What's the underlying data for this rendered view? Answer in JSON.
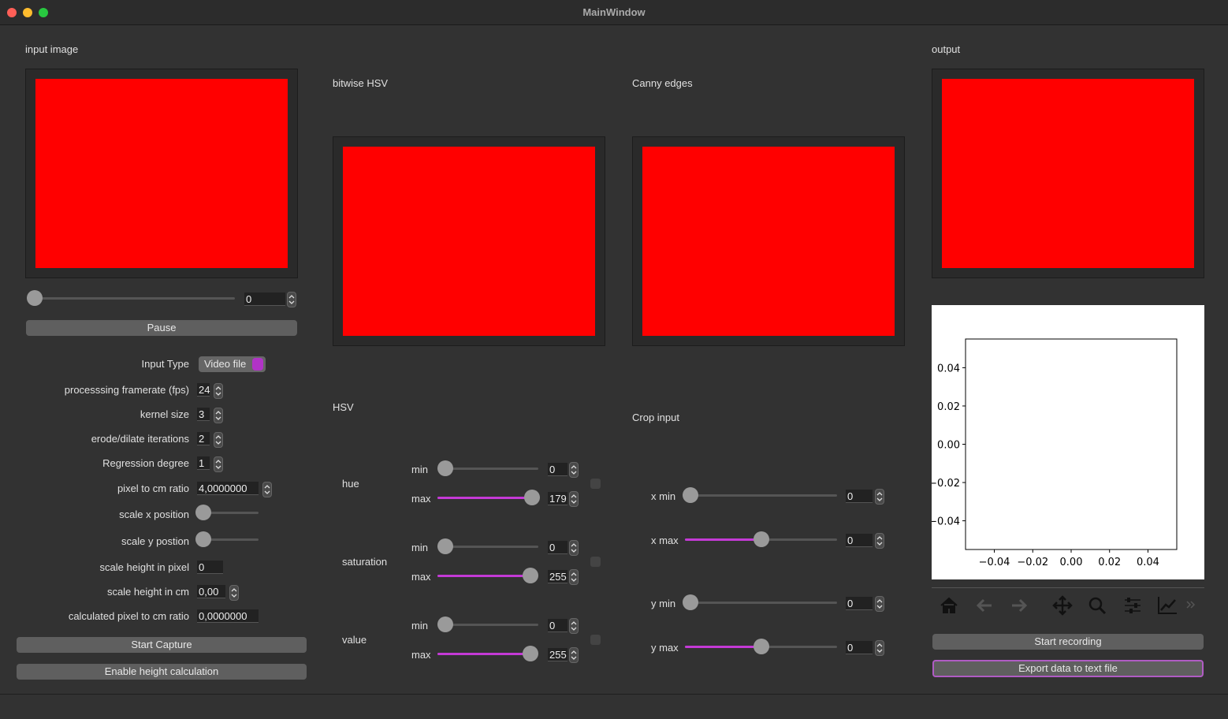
{
  "window": {
    "title": "MainWindow"
  },
  "input": {
    "label": "input image",
    "frame": 0,
    "pause": "Pause"
  },
  "settings": [
    {
      "label": "Input Type",
      "value": "Video file"
    },
    {
      "label": "processsing framerate (fps)",
      "value": 24
    },
    {
      "label": "kernel size",
      "value": 3
    },
    {
      "label": "erode/dilate iterations",
      "value": 2
    },
    {
      "label": "Regression degree",
      "value": 1
    },
    {
      "label": "pixel to cm ratio",
      "value": "4,0000000"
    },
    {
      "label": "scale x position"
    },
    {
      "label": "scale y postion"
    },
    {
      "label": "scale height in pixel",
      "value": 0
    },
    {
      "label": "scale height in cm",
      "value": "0,00"
    },
    {
      "label": "calculated pixel to cm ratio",
      "value": "0,0000000"
    }
  ],
  "buttons": [
    "Start Capture",
    "Enable height calculation"
  ],
  "panels": {
    "bitwise": "bitwise HSV",
    "canny": "Canny edges",
    "output": "output"
  },
  "hsv": {
    "title": "HSV",
    "min_label": "min",
    "max_label": "max",
    "rows": [
      {
        "label": "hue",
        "min": 0,
        "max": 179
      },
      {
        "label": "saturation",
        "min": 0,
        "max": 255
      },
      {
        "label": "value",
        "min": 0,
        "max": 255
      }
    ]
  },
  "crop": {
    "title": "Crop input",
    "rows": [
      {
        "label": "x min",
        "value": 0
      },
      {
        "label": "x max",
        "value": 0
      },
      {
        "label": "y min",
        "value": 0
      },
      {
        "label": "y max",
        "value": 0
      }
    ]
  },
  "plot": {
    "xlim": [
      -0.055,
      0.055
    ],
    "ylim": [
      -0.055,
      0.055
    ],
    "xticks": [
      {
        "value": -0.04,
        "label": "−0.04"
      },
      {
        "value": -0.02,
        "label": "−0.02"
      },
      {
        "value": 0,
        "label": "0.00"
      },
      0.02,
      0.04
    ],
    "yticks": [
      {
        "value": -0.04,
        "label": "−0.04"
      },
      {
        "value": -0.02,
        "label": "−0.02"
      },
      {
        "value": 0,
        "label": "0.00"
      },
      0.02,
      0.04
    ]
  },
  "output_buttons": [
    "Start recording",
    "Export data to text file"
  ]
}
